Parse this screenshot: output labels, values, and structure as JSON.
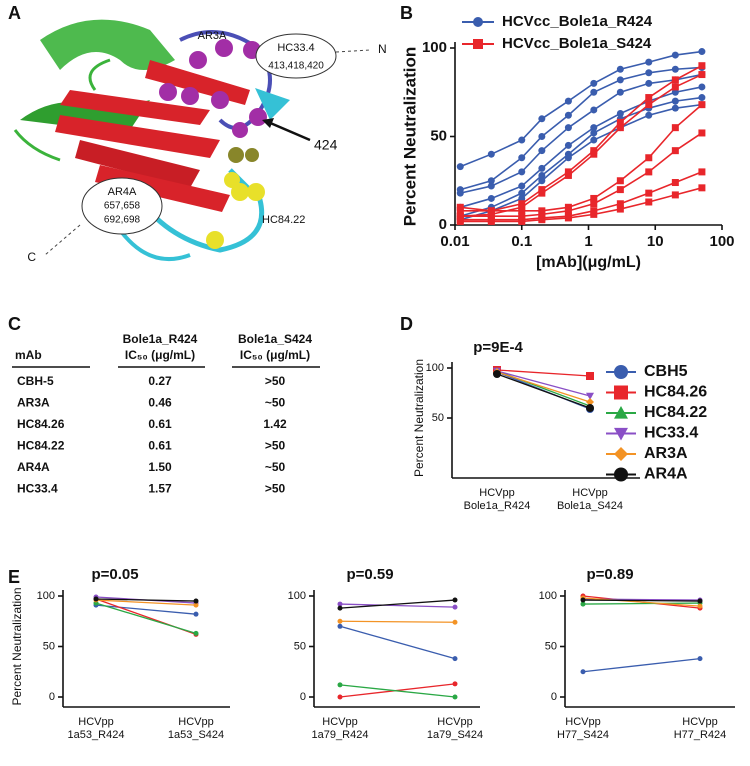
{
  "panel_labels": [
    "A",
    "B",
    "C",
    "D",
    "E"
  ],
  "structure": {
    "labels": [
      "AR3A",
      "HC33.4",
      "413,418,420",
      "N",
      "424",
      "AR4A",
      "657,658",
      "692,698",
      "C",
      "HC84.22"
    ]
  },
  "table": {
    "header": [
      [
        "mAb"
      ],
      [
        "Bole1a_R424",
        "IC₅₀ (μg/mL)"
      ],
      [
        "Bole1a_S424",
        "IC₅₀ (μg/mL)"
      ]
    ],
    "rows": [
      [
        "CBH-5",
        "0.27",
        ">50"
      ],
      [
        "AR3A",
        "0.46",
        "~50"
      ],
      [
        "HC84.26",
        "0.61",
        "1.42"
      ],
      [
        "HC84.22",
        "0.61",
        ">50"
      ],
      [
        "AR4A",
        "1.50",
        "~50"
      ],
      [
        "HC33.4",
        "1.57",
        ">50"
      ]
    ]
  },
  "chart_data": [
    {
      "type": "line",
      "xlabel": "[mAb](μg/mL)",
      "ylabel": "Percent Neutralization",
      "xscale": "log",
      "x": [
        0.012,
        0.035,
        0.1,
        0.2,
        0.5,
        1.2,
        3,
        8,
        20,
        50
      ],
      "xlim": [
        0.01,
        100
      ],
      "xticks": [
        0.01,
        0.1,
        1,
        10,
        100
      ],
      "ylim": [
        0,
        100
      ],
      "yticks": [
        0,
        50,
        100
      ],
      "legend": "top-left",
      "series": [
        {
          "name": "HCVcc_Bole1a_R424",
          "color": "#3a5dae",
          "marker": "circle",
          "curves": [
            [
              33,
              40,
              48,
              60,
              70,
              80,
              88,
              92,
              96,
              98
            ],
            [
              20,
              25,
              38,
              50,
              62,
              75,
              82,
              86,
              88,
              89
            ],
            [
              18,
              22,
              30,
              42,
              55,
              65,
              75,
              80,
              82,
              85
            ],
            [
              10,
              15,
              22,
              32,
              45,
              55,
              63,
              70,
              75,
              78
            ],
            [
              5,
              10,
              18,
              28,
              40,
              52,
              60,
              66,
              70,
              72
            ],
            [
              3,
              8,
              15,
              25,
              38,
              48,
              55,
              62,
              66,
              68
            ]
          ]
        },
        {
          "name": "HCVcc_Bole1a_S424",
          "color": "#e8262b",
          "marker": "square",
          "curves": [
            [
              10,
              8,
              12,
              20,
              30,
              42,
              58,
              72,
              82,
              90
            ],
            [
              5,
              6,
              10,
              18,
              28,
              40,
              55,
              68,
              78,
              85
            ],
            [
              8,
              8,
              8,
              8,
              10,
              15,
              25,
              38,
              55,
              68
            ],
            [
              5,
              5,
              5,
              6,
              8,
              12,
              20,
              30,
              42,
              52
            ],
            [
              3,
              3,
              3,
              4,
              5,
              8,
              12,
              18,
              24,
              30
            ],
            [
              2,
              2,
              2,
              3,
              4,
              6,
              9,
              13,
              17,
              21
            ]
          ]
        }
      ]
    },
    {
      "type": "line",
      "annotation": "p=9E-4",
      "ylabel": "Percent Neutralization",
      "ylim": [
        0,
        100
      ],
      "yticks": [
        50,
        100
      ],
      "legend": "right",
      "categories": [
        "HCVpp Bole1a_R424",
        "HCVpp Bole1a_S424"
      ],
      "series": [
        {
          "name": "CBH5",
          "color": "#3a5dae",
          "marker": "circle",
          "values": [
            96,
            59
          ]
        },
        {
          "name": "HC84.26",
          "color": "#e8262b",
          "marker": "square",
          "values": [
            98,
            92
          ]
        },
        {
          "name": "HC84.22",
          "color": "#2aa845",
          "marker": "triangle-up",
          "values": [
            97,
            62
          ]
        },
        {
          "name": "HC33.4",
          "color": "#8a4fc6",
          "marker": "triangle-down",
          "values": [
            97,
            72
          ]
        },
        {
          "name": "AR3A",
          "color": "#f39325",
          "marker": "diamond",
          "values": [
            96,
            66
          ]
        },
        {
          "name": "AR4A",
          "color": "#111111",
          "marker": "circle",
          "values": [
            94,
            60
          ]
        }
      ]
    },
    {
      "type": "line",
      "annotation": "p=0.05",
      "ylabel": "Percent Neutralization",
      "ylim": [
        0,
        100
      ],
      "yticks": [
        0,
        50,
        100
      ],
      "categories": [
        "HCVpp 1a53_R424",
        "HCVpp 1a53_S424"
      ],
      "series": [
        {
          "color": "#3a5dae",
          "values": [
            91,
            82
          ]
        },
        {
          "color": "#e8262b",
          "values": [
            97,
            62
          ]
        },
        {
          "color": "#2aa845",
          "values": [
            93,
            63
          ]
        },
        {
          "color": "#8a4fc6",
          "values": [
            99,
            93
          ]
        },
        {
          "color": "#f39325",
          "values": [
            96,
            91
          ]
        },
        {
          "color": "#111111",
          "values": [
            97,
            95
          ]
        }
      ]
    },
    {
      "type": "line",
      "annotation": "p=0.59",
      "ylim": [
        0,
        100
      ],
      "yticks": [
        0,
        50,
        100
      ],
      "categories": [
        "HCVpp 1a79_R424",
        "HCVpp 1a79_S424"
      ],
      "series": [
        {
          "color": "#3a5dae",
          "values": [
            70,
            38
          ]
        },
        {
          "color": "#e8262b",
          "values": [
            0,
            13
          ]
        },
        {
          "color": "#2aa845",
          "values": [
            12,
            0
          ]
        },
        {
          "color": "#8a4fc6",
          "values": [
            92,
            89
          ]
        },
        {
          "color": "#f39325",
          "values": [
            75,
            74
          ]
        },
        {
          "color": "#111111",
          "values": [
            88,
            96
          ]
        }
      ]
    },
    {
      "type": "line",
      "annotation": "p=0.89",
      "ylim": [
        0,
        100
      ],
      "yticks": [
        0,
        50,
        100
      ],
      "categories": [
        "HCVpp H77_S424",
        "HCVpp H77_R424"
      ],
      "series": [
        {
          "color": "#3a5dae",
          "values": [
            25,
            38
          ]
        },
        {
          "color": "#e8262b",
          "values": [
            100,
            88
          ]
        },
        {
          "color": "#2aa845",
          "values": [
            92,
            93
          ]
        },
        {
          "color": "#8a4fc6",
          "values": [
            97,
            96
          ]
        },
        {
          "color": "#f39325",
          "values": [
            98,
            90
          ]
        },
        {
          "color": "#111111",
          "values": [
            96,
            95
          ]
        }
      ]
    }
  ]
}
